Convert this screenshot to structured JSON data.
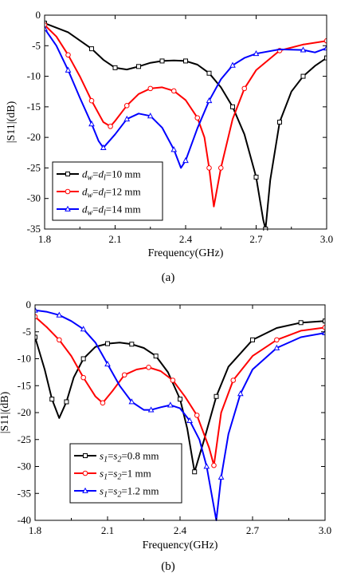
{
  "chart_data": [
    {
      "type": "line",
      "panel_label": "(a)",
      "xlabel": "Frequency(GHz)",
      "ylabel": "|S11|(dB)",
      "xlim": [
        1.8,
        3.0
      ],
      "ylim": [
        -35,
        0
      ],
      "xticks": [
        1.8,
        2.1,
        2.4,
        2.7,
        3.0
      ],
      "xtick_labels": [
        "1.8",
        "2.1",
        "2.4",
        "2.7",
        "3.0"
      ],
      "yticks": [
        0,
        -5,
        -10,
        -15,
        -20,
        -25,
        -30,
        -35
      ],
      "ytick_labels": [
        "0",
        "-5",
        "-10",
        "-15",
        "-20",
        "-25",
        "-30",
        "-35"
      ],
      "legend_position": "bottom-left",
      "series": [
        {
          "name_parts": [
            "d",
            "w",
            "=",
            "d",
            "l",
            "=10 mm"
          ],
          "color": "#000000",
          "marker": "square",
          "x": [
            1.8,
            1.9,
            2.0,
            2.05,
            2.1,
            2.15,
            2.2,
            2.25,
            2.3,
            2.35,
            2.4,
            2.45,
            2.5,
            2.55,
            2.6,
            2.65,
            2.7,
            2.73,
            2.74,
            2.76,
            2.8,
            2.85,
            2.9,
            2.95,
            3.0
          ],
          "y": [
            -1.3,
            -2.8,
            -5.5,
            -7.3,
            -8.6,
            -8.9,
            -8.4,
            -7.8,
            -7.5,
            -7.4,
            -7.5,
            -8.1,
            -9.5,
            -11.8,
            -15.0,
            -19.5,
            -26.5,
            -33.5,
            -35.0,
            -27.0,
            -17.5,
            -12.5,
            -10.0,
            -8.3,
            -7.0
          ]
        },
        {
          "name_parts": [
            "d",
            "w",
            "=",
            "d",
            "l",
            "=12 mm"
          ],
          "color": "#ff0000",
          "marker": "circle",
          "x": [
            1.8,
            1.85,
            1.9,
            1.95,
            2.0,
            2.05,
            2.08,
            2.1,
            2.15,
            2.2,
            2.25,
            2.3,
            2.35,
            2.4,
            2.45,
            2.48,
            2.5,
            2.52,
            2.55,
            2.6,
            2.65,
            2.7,
            2.8,
            2.9,
            3.0
          ],
          "y": [
            -1.6,
            -3.5,
            -6.5,
            -10.0,
            -14.0,
            -17.5,
            -18.2,
            -17.3,
            -14.8,
            -12.9,
            -12.0,
            -11.8,
            -12.4,
            -13.9,
            -16.8,
            -20.0,
            -25.0,
            -31.3,
            -25.0,
            -17.0,
            -12.0,
            -9.0,
            -5.8,
            -4.8,
            -4.2
          ]
        },
        {
          "name_parts": [
            "d",
            "w",
            "=",
            "d",
            "l",
            "=14 mm"
          ],
          "color": "#0000ff",
          "marker": "triangle",
          "x": [
            1.8,
            1.85,
            1.9,
            1.95,
            2.0,
            2.03,
            2.05,
            2.1,
            2.15,
            2.2,
            2.25,
            2.3,
            2.35,
            2.38,
            2.4,
            2.45,
            2.5,
            2.55,
            2.6,
            2.65,
            2.7,
            2.8,
            2.9,
            2.95,
            3.0
          ],
          "y": [
            -2.2,
            -5.0,
            -9.0,
            -13.5,
            -17.8,
            -20.6,
            -21.7,
            -19.5,
            -17.0,
            -16.1,
            -16.5,
            -18.4,
            -22.0,
            -25.0,
            -23.8,
            -18.5,
            -14.0,
            -10.5,
            -8.2,
            -7.0,
            -6.3,
            -5.6,
            -5.7,
            -6.1,
            -5.4
          ]
        }
      ]
    },
    {
      "type": "line",
      "panel_label": "(b)",
      "xlabel": "Frequency(GHz)",
      "ylabel": "|S11|(dB)",
      "xlim": [
        1.8,
        3.0
      ],
      "ylim": [
        -40,
        0
      ],
      "xticks": [
        1.8,
        2.1,
        2.4,
        2.7,
        3.0
      ],
      "xtick_labels": [
        "1.8",
        "2.1",
        "2.4",
        "2.7",
        "3.0"
      ],
      "yticks": [
        0,
        -5,
        -10,
        -15,
        -20,
        -25,
        -30,
        -35,
        -40
      ],
      "ytick_labels": [
        "0",
        "-5",
        "-10",
        "-15",
        "-20",
        "-25",
        "-30",
        "-35",
        "-40"
      ],
      "legend_position": "bottom-left",
      "series": [
        {
          "name_parts": [
            "s",
            "1",
            "=",
            "s",
            "2",
            "=0.8 mm"
          ],
          "color": "#000000",
          "marker": "square",
          "x": [
            1.8,
            1.84,
            1.87,
            1.9,
            1.93,
            1.96,
            2.0,
            2.05,
            2.1,
            2.15,
            2.2,
            2.25,
            2.3,
            2.35,
            2.4,
            2.43,
            2.46,
            2.5,
            2.55,
            2.6,
            2.7,
            2.8,
            2.9,
            3.0
          ],
          "y": [
            -6.0,
            -12.0,
            -17.5,
            -21.0,
            -18.0,
            -13.5,
            -10.0,
            -7.8,
            -7.2,
            -7.0,
            -7.3,
            -8.0,
            -9.5,
            -12.5,
            -17.5,
            -23.0,
            -31.0,
            -25.0,
            -17.0,
            -11.5,
            -6.5,
            -4.3,
            -3.3,
            -3.0
          ]
        },
        {
          "name_parts": [
            "s",
            "1",
            "=",
            "s",
            "2",
            "=1 mm"
          ],
          "color": "#ff0000",
          "marker": "circle",
          "x": [
            1.8,
            1.85,
            1.9,
            1.95,
            2.0,
            2.05,
            2.08,
            2.12,
            2.17,
            2.22,
            2.27,
            2.32,
            2.37,
            2.42,
            2.47,
            2.52,
            2.54,
            2.57,
            2.62,
            2.7,
            2.8,
            2.9,
            3.0
          ],
          "y": [
            -2.2,
            -4.2,
            -6.5,
            -9.5,
            -13.5,
            -17.0,
            -18.2,
            -16.0,
            -13.0,
            -12.0,
            -11.6,
            -12.3,
            -14.0,
            -17.0,
            -20.5,
            -26.5,
            -29.8,
            -20.0,
            -14.0,
            -9.5,
            -6.5,
            -4.8,
            -4.2
          ]
        },
        {
          "name_parts": [
            "s",
            "1",
            "=",
            "s",
            "2",
            "=1.2 mm"
          ],
          "color": "#0000ff",
          "marker": "triangle",
          "x": [
            1.8,
            1.85,
            1.9,
            1.95,
            2.0,
            2.05,
            2.1,
            2.15,
            2.2,
            2.25,
            2.28,
            2.32,
            2.36,
            2.4,
            2.44,
            2.48,
            2.51,
            2.55,
            2.57,
            2.6,
            2.65,
            2.7,
            2.8,
            2.9,
            3.0
          ],
          "y": [
            -1.0,
            -1.3,
            -1.9,
            -3.0,
            -4.5,
            -7.0,
            -11.0,
            -15.0,
            -18.0,
            -19.5,
            -19.5,
            -19.0,
            -18.6,
            -19.2,
            -21.5,
            -25.0,
            -30.0,
            -40.0,
            -32.0,
            -24.0,
            -16.5,
            -12.0,
            -8.0,
            -6.0,
            -5.2
          ]
        }
      ]
    }
  ]
}
